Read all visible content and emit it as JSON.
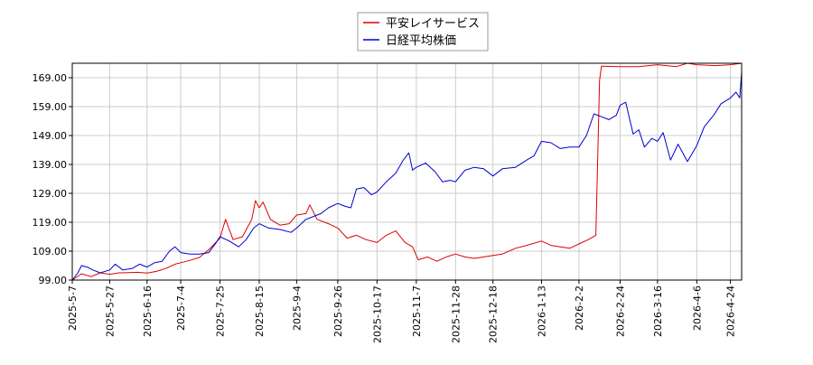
{
  "chart_data": {
    "type": "line",
    "title": "",
    "xlabel": "",
    "ylabel": "",
    "ylim": [
      99.0,
      174.0
    ],
    "yticks": [
      "99.00",
      "109.00",
      "119.00",
      "129.00",
      "139.00",
      "149.00",
      "159.00",
      "169.00"
    ],
    "xticks": [
      "2025-5-7",
      "2025-5-27",
      "2025-6-16",
      "2025-7-4",
      "2025-7-25",
      "2025-8-15",
      "2025-9-4",
      "2025-9-26",
      "2025-10-17",
      "2025-11-7",
      "2025-11-28",
      "2025-12-18",
      "2026-1-13",
      "2026-2-2",
      "2026-2-24",
      "2026-3-16",
      "2026-4-6",
      "2026-4-24"
    ],
    "xrange": [
      "2025-5-7",
      "2026-4-30"
    ],
    "grid": true,
    "legend_position": "top-center",
    "series": [
      {
        "name": "平安レイサービス",
        "color": "#dd0000",
        "points": [
          [
            "2025-5-7",
            99.0
          ],
          [
            "2025-5-12",
            101.2
          ],
          [
            "2025-5-17",
            100.2
          ],
          [
            "2025-5-22",
            101.5
          ],
          [
            "2025-5-27",
            101.0
          ],
          [
            "2025-6-1",
            101.5
          ],
          [
            "2025-6-6",
            101.6
          ],
          [
            "2025-6-11",
            101.7
          ],
          [
            "2025-6-16",
            101.4
          ],
          [
            "2025-6-21",
            102.0
          ],
          [
            "2025-6-26",
            103.0
          ],
          [
            "2025-7-1",
            104.5
          ],
          [
            "2025-7-4",
            105.0
          ],
          [
            "2025-7-9",
            105.8
          ],
          [
            "2025-7-14",
            106.8
          ],
          [
            "2025-7-19",
            109.5
          ],
          [
            "2025-7-25",
            113.5
          ],
          [
            "2025-7-28",
            120.0
          ],
          [
            "2025-8-1",
            113.0
          ],
          [
            "2025-8-6",
            114.0
          ],
          [
            "2025-8-11",
            120.0
          ],
          [
            "2025-8-13",
            126.5
          ],
          [
            "2025-8-15",
            124.0
          ],
          [
            "2025-8-17",
            126.0
          ],
          [
            "2025-8-21",
            120.0
          ],
          [
            "2025-8-26",
            118.0
          ],
          [
            "2025-8-31",
            118.5
          ],
          [
            "2025-9-4",
            121.5
          ],
          [
            "2025-9-9",
            122.0
          ],
          [
            "2025-9-11",
            125.0
          ],
          [
            "2025-9-15",
            120.0
          ],
          [
            "2025-9-21",
            118.5
          ],
          [
            "2025-9-26",
            117.0
          ],
          [
            "2025-10-1",
            113.5
          ],
          [
            "2025-10-6",
            114.5
          ],
          [
            "2025-10-11",
            113.0
          ],
          [
            "2025-10-17",
            112.0
          ],
          [
            "2025-10-22",
            114.5
          ],
          [
            "2025-10-27",
            116.0
          ],
          [
            "2025-11-1",
            112.0
          ],
          [
            "2025-11-5",
            110.5
          ],
          [
            "2025-11-8",
            106.0
          ],
          [
            "2025-11-13",
            107.0
          ],
          [
            "2025-11-18",
            105.5
          ],
          [
            "2025-11-23",
            107.0
          ],
          [
            "2025-11-28",
            108.0
          ],
          [
            "2025-12-3",
            107.0
          ],
          [
            "2025-12-8",
            106.5
          ],
          [
            "2025-12-13",
            107.0
          ],
          [
            "2025-12-18",
            107.5
          ],
          [
            "2025-12-23",
            108.0
          ],
          [
            "2025-12-30",
            110.0
          ],
          [
            "2026-1-5",
            111.0
          ],
          [
            "2026-1-13",
            112.5
          ],
          [
            "2026-1-18",
            111.0
          ],
          [
            "2026-1-23",
            110.5
          ],
          [
            "2026-1-28",
            110.0
          ],
          [
            "2026-2-2",
            111.5
          ],
          [
            "2026-2-7",
            113.0
          ],
          [
            "2026-2-11",
            114.5
          ],
          [
            "2026-2-12",
            140.0
          ],
          [
            "2026-2-13",
            168.0
          ],
          [
            "2026-2-14",
            173.0
          ],
          [
            "2026-2-24",
            172.8
          ],
          [
            "2026-3-6",
            172.8
          ],
          [
            "2026-3-16",
            173.5
          ],
          [
            "2026-3-26",
            172.8
          ],
          [
            "2026-4-1",
            174.0
          ],
          [
            "2026-4-6",
            173.5
          ],
          [
            "2026-4-16",
            173.2
          ],
          [
            "2026-4-24",
            173.5
          ],
          [
            "2026-4-30",
            174.0
          ]
        ]
      },
      {
        "name": "日経平均株価",
        "color": "#0000cc",
        "points": [
          [
            "2025-5-7",
            99.0
          ],
          [
            "2025-5-10",
            101.5
          ],
          [
            "2025-5-12",
            104.0
          ],
          [
            "2025-5-15",
            103.5
          ],
          [
            "2025-5-18",
            102.5
          ],
          [
            "2025-5-22",
            101.5
          ],
          [
            "2025-5-27",
            102.5
          ],
          [
            "2025-5-30",
            104.5
          ],
          [
            "2025-6-3",
            102.5
          ],
          [
            "2025-6-8",
            103.0
          ],
          [
            "2025-6-12",
            104.5
          ],
          [
            "2025-6-16",
            103.5
          ],
          [
            "2025-6-20",
            105.0
          ],
          [
            "2025-6-24",
            105.5
          ],
          [
            "2025-6-28",
            109.0
          ],
          [
            "2025-7-1",
            110.5
          ],
          [
            "2025-7-4",
            108.5
          ],
          [
            "2025-7-9",
            108.0
          ],
          [
            "2025-7-14",
            108.0
          ],
          [
            "2025-7-19",
            108.5
          ],
          [
            "2025-7-23",
            112.0
          ],
          [
            "2025-7-25",
            114.0
          ],
          [
            "2025-7-30",
            112.5
          ],
          [
            "2025-8-4",
            110.5
          ],
          [
            "2025-8-8",
            113.0
          ],
          [
            "2025-8-12",
            117.0
          ],
          [
            "2025-8-15",
            118.5
          ],
          [
            "2025-8-20",
            117.0
          ],
          [
            "2025-8-26",
            116.5
          ],
          [
            "2025-9-1",
            115.5
          ],
          [
            "2025-9-4",
            117.0
          ],
          [
            "2025-9-9",
            120.0
          ],
          [
            "2025-9-13",
            121.0
          ],
          [
            "2025-9-17",
            122.0
          ],
          [
            "2025-9-21",
            124.0
          ],
          [
            "2025-9-26",
            125.5
          ],
          [
            "2025-9-30",
            124.5
          ],
          [
            "2025-10-3",
            124.0
          ],
          [
            "2025-10-6",
            130.5
          ],
          [
            "2025-10-10",
            131.0
          ],
          [
            "2025-10-14",
            128.5
          ],
          [
            "2025-10-17",
            129.5
          ],
          [
            "2025-10-22",
            133.0
          ],
          [
            "2025-10-27",
            136.0
          ],
          [
            "2025-10-31",
            140.5
          ],
          [
            "2025-11-3",
            143.0
          ],
          [
            "2025-11-5",
            137.0
          ],
          [
            "2025-11-7",
            138.0
          ],
          [
            "2025-11-12",
            139.5
          ],
          [
            "2025-11-17",
            136.5
          ],
          [
            "2025-11-21",
            133.0
          ],
          [
            "2025-11-25",
            133.5
          ],
          [
            "2025-11-28",
            133.0
          ],
          [
            "2025-12-3",
            137.0
          ],
          [
            "2025-12-8",
            138.0
          ],
          [
            "2025-12-13",
            137.5
          ],
          [
            "2025-12-18",
            135.0
          ],
          [
            "2025-12-23",
            137.5
          ],
          [
            "2025-12-30",
            138.0
          ],
          [
            "2026-1-5",
            140.5
          ],
          [
            "2026-1-9",
            142.0
          ],
          [
            "2026-1-13",
            147.0
          ],
          [
            "2026-1-18",
            146.5
          ],
          [
            "2026-1-23",
            144.5
          ],
          [
            "2026-1-28",
            145.0
          ],
          [
            "2026-2-2",
            145.0
          ],
          [
            "2026-2-6",
            149.0
          ],
          [
            "2026-2-10",
            156.5
          ],
          [
            "2026-2-14",
            155.5
          ],
          [
            "2026-2-18",
            154.5
          ],
          [
            "2026-2-22",
            156.0
          ],
          [
            "2026-2-24",
            159.5
          ],
          [
            "2026-2-27",
            160.5
          ],
          [
            "2026-3-3",
            149.5
          ],
          [
            "2026-3-6",
            151.0
          ],
          [
            "2026-3-9",
            145.0
          ],
          [
            "2026-3-13",
            148.0
          ],
          [
            "2026-3-16",
            147.0
          ],
          [
            "2026-3-19",
            150.0
          ],
          [
            "2026-3-23",
            140.5
          ],
          [
            "2026-3-27",
            146.0
          ],
          [
            "2026-4-1",
            140.0
          ],
          [
            "2026-4-6",
            145.5
          ],
          [
            "2026-4-10",
            152.0
          ],
          [
            "2026-4-15",
            156.0
          ],
          [
            "2026-4-19",
            160.0
          ],
          [
            "2026-4-24",
            162.0
          ],
          [
            "2026-4-27",
            164.0
          ],
          [
            "2026-4-29",
            162.0
          ],
          [
            "2026-4-30",
            171.0
          ]
        ]
      }
    ]
  }
}
